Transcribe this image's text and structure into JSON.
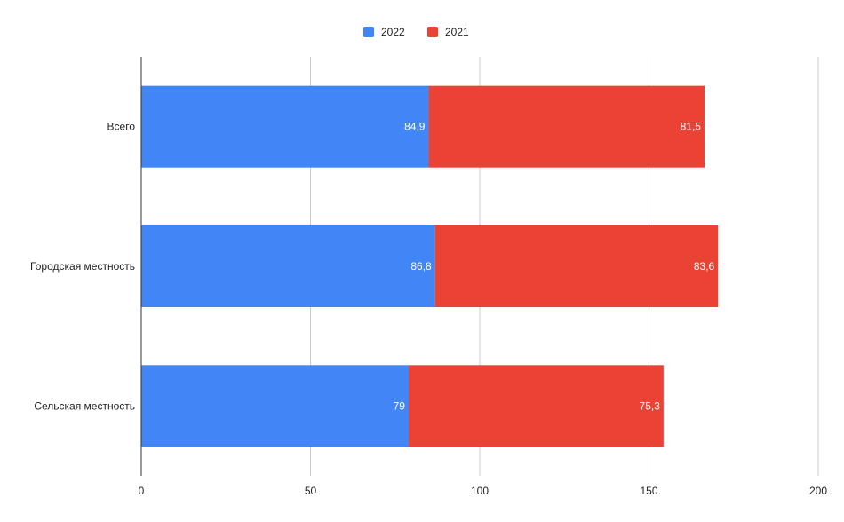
{
  "chart_data": {
    "type": "bar",
    "orientation": "horizontal",
    "stacked": true,
    "categories": [
      "Всего",
      "Городская местность",
      "Сельская местность"
    ],
    "series": [
      {
        "name": "2022",
        "values": [
          84.9,
          86.8,
          79
        ],
        "labels": [
          "84,9",
          "86,8",
          "79"
        ],
        "color": "#4285f4"
      },
      {
        "name": "2021",
        "values": [
          81.5,
          83.6,
          75.3
        ],
        "labels": [
          "81,5",
          "83,6",
          "75,3"
        ],
        "color": "#ea4335"
      }
    ],
    "xlim": [
      0,
      200
    ],
    "xticks": [
      0,
      50,
      100,
      150,
      200
    ],
    "xtick_labels": [
      "0",
      "50",
      "100",
      "150",
      "200"
    ],
    "grid": "vertical",
    "legend": "top-center",
    "title": "",
    "xlabel": "",
    "ylabel": ""
  }
}
